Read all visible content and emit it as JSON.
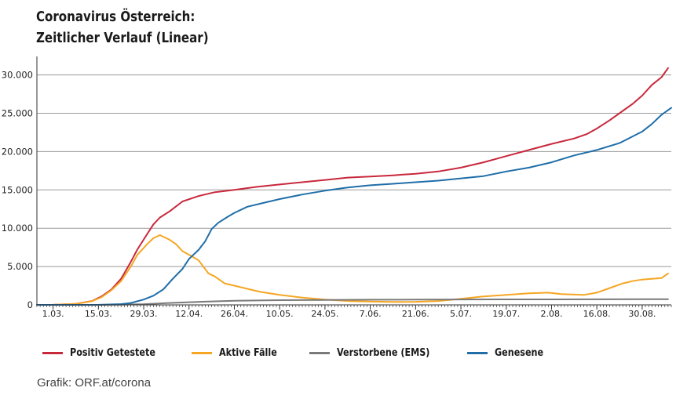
{
  "header": {
    "title_line1": "Coronavirus Österreich:",
    "title_line2": "Zeitlicher Verlauf (Linear)"
  },
  "source": "Grafik: ORF.at/corona",
  "chart_data": {
    "type": "line",
    "title": "Coronavirus Österreich: Zeitlicher Verlauf (Linear)",
    "xlabel": "",
    "ylabel": "",
    "grid": true,
    "legend_position": "bottom",
    "ylim": [
      0,
      32000
    ],
    "y_ticks": [
      0,
      5000,
      10000,
      15000,
      20000,
      25000,
      30000
    ],
    "y_tick_labels": [
      "0",
      "5.000",
      "10.000",
      "15.000",
      "20.000",
      "25.000",
      "30.000"
    ],
    "x_range": [
      "2020-02-25",
      "2020-09-08"
    ],
    "x_ticks": [
      "2020-03-01",
      "2020-03-15",
      "2020-03-29",
      "2020-04-12",
      "2020-04-26",
      "2020-05-10",
      "2020-05-24",
      "2020-06-07",
      "2020-06-21",
      "2020-07-05",
      "2020-07-19",
      "2020-08-02",
      "2020-08-16",
      "2020-08-30"
    ],
    "x_tick_labels": [
      "1.03.",
      "15.03.",
      "29.03.",
      "12.04.",
      "26.04.",
      "10.05.",
      "24.05.",
      "7.06.",
      "21.06.",
      "5.07.",
      "19.07.",
      "2.08.",
      "16.08.",
      "30.08."
    ],
    "series": [
      {
        "name": "Positiv Getestete",
        "color": "#c8283c",
        "points": [
          [
            "2020-02-25",
            0
          ],
          [
            "2020-03-01",
            15
          ],
          [
            "2020-03-08",
            130
          ],
          [
            "2020-03-13",
            500
          ],
          [
            "2020-03-16",
            1100
          ],
          [
            "2020-03-19",
            2000
          ],
          [
            "2020-03-22",
            3400
          ],
          [
            "2020-03-25",
            5600
          ],
          [
            "2020-03-27",
            7200
          ],
          [
            "2020-03-30",
            9200
          ],
          [
            "2020-04-01",
            10500
          ],
          [
            "2020-04-03",
            11400
          ],
          [
            "2020-04-06",
            12200
          ],
          [
            "2020-04-10",
            13500
          ],
          [
            "2020-04-15",
            14200
          ],
          [
            "2020-04-20",
            14700
          ],
          [
            "2020-04-26",
            15000
          ],
          [
            "2020-05-03",
            15400
          ],
          [
            "2020-05-10",
            15700
          ],
          [
            "2020-05-17",
            16000
          ],
          [
            "2020-05-24",
            16300
          ],
          [
            "2020-05-31",
            16600
          ],
          [
            "2020-06-07",
            16750
          ],
          [
            "2020-06-14",
            16900
          ],
          [
            "2020-06-21",
            17100
          ],
          [
            "2020-06-28",
            17400
          ],
          [
            "2020-07-05",
            17900
          ],
          [
            "2020-07-12",
            18600
          ],
          [
            "2020-07-19",
            19400
          ],
          [
            "2020-07-26",
            20200
          ],
          [
            "2020-08-02",
            21000
          ],
          [
            "2020-08-09",
            21700
          ],
          [
            "2020-08-13",
            22300
          ],
          [
            "2020-08-16",
            23000
          ],
          [
            "2020-08-20",
            24100
          ],
          [
            "2020-08-23",
            25000
          ],
          [
            "2020-08-27",
            26200
          ],
          [
            "2020-08-30",
            27300
          ],
          [
            "2020-09-02",
            28700
          ],
          [
            "2020-09-05",
            29700
          ],
          [
            "2020-09-07",
            30900
          ]
        ]
      },
      {
        "name": "Aktive Fälle",
        "color": "#f5a623",
        "points": [
          [
            "2020-02-25",
            0
          ],
          [
            "2020-03-01",
            15
          ],
          [
            "2020-03-08",
            120
          ],
          [
            "2020-03-13",
            480
          ],
          [
            "2020-03-16",
            1000
          ],
          [
            "2020-03-19",
            1900
          ],
          [
            "2020-03-22",
            3100
          ],
          [
            "2020-03-25",
            5000
          ],
          [
            "2020-03-27",
            6500
          ],
          [
            "2020-03-30",
            7900
          ],
          [
            "2020-04-01",
            8700
          ],
          [
            "2020-04-03",
            9100
          ],
          [
            "2020-04-06",
            8500
          ],
          [
            "2020-04-08",
            7900
          ],
          [
            "2020-04-10",
            7000
          ],
          [
            "2020-04-13",
            6300
          ],
          [
            "2020-04-15",
            5800
          ],
          [
            "2020-04-18",
            4100
          ],
          [
            "2020-04-20",
            3700
          ],
          [
            "2020-04-23",
            2800
          ],
          [
            "2020-04-26",
            2500
          ],
          [
            "2020-04-30",
            2100
          ],
          [
            "2020-05-04",
            1700
          ],
          [
            "2020-05-10",
            1300
          ],
          [
            "2020-05-17",
            950
          ],
          [
            "2020-05-24",
            700
          ],
          [
            "2020-06-01",
            480
          ],
          [
            "2020-06-07",
            430
          ],
          [
            "2020-06-14",
            380
          ],
          [
            "2020-06-21",
            400
          ],
          [
            "2020-06-28",
            500
          ],
          [
            "2020-07-05",
            800
          ],
          [
            "2020-07-12",
            1100
          ],
          [
            "2020-07-19",
            1300
          ],
          [
            "2020-07-26",
            1500
          ],
          [
            "2020-08-01",
            1600
          ],
          [
            "2020-08-05",
            1400
          ],
          [
            "2020-08-12",
            1300
          ],
          [
            "2020-08-16",
            1600
          ],
          [
            "2020-08-20",
            2200
          ],
          [
            "2020-08-24",
            2800
          ],
          [
            "2020-08-27",
            3100
          ],
          [
            "2020-08-30",
            3300
          ],
          [
            "2020-09-02",
            3400
          ],
          [
            "2020-09-05",
            3500
          ],
          [
            "2020-09-07",
            4100
          ]
        ]
      },
      {
        "name": "Verstorbene (EMS)",
        "color": "#7a7a7a",
        "points": [
          [
            "2020-02-25",
            0
          ],
          [
            "2020-03-15",
            5
          ],
          [
            "2020-03-22",
            30
          ],
          [
            "2020-03-29",
            90
          ],
          [
            "2020-04-05",
            220
          ],
          [
            "2020-04-12",
            350
          ],
          [
            "2020-04-19",
            450
          ],
          [
            "2020-04-26",
            540
          ],
          [
            "2020-05-10",
            610
          ],
          [
            "2020-05-24",
            640
          ],
          [
            "2020-06-07",
            670
          ],
          [
            "2020-06-21",
            690
          ],
          [
            "2020-07-05",
            705
          ],
          [
            "2020-07-19",
            715
          ],
          [
            "2020-08-02",
            720
          ],
          [
            "2020-08-16",
            727
          ],
          [
            "2020-08-30",
            735
          ],
          [
            "2020-09-07",
            750
          ]
        ]
      },
      {
        "name": "Genesene",
        "color": "#1f6ea8",
        "points": [
          [
            "2020-02-25",
            0
          ],
          [
            "2020-03-15",
            10
          ],
          [
            "2020-03-22",
            100
          ],
          [
            "2020-03-25",
            250
          ],
          [
            "2020-03-29",
            700
          ],
          [
            "2020-04-01",
            1200
          ],
          [
            "2020-04-04",
            2000
          ],
          [
            "2020-04-07",
            3400
          ],
          [
            "2020-04-10",
            4700
          ],
          [
            "2020-04-12",
            6000
          ],
          [
            "2020-04-15",
            7200
          ],
          [
            "2020-04-17",
            8300
          ],
          [
            "2020-04-19",
            9900
          ],
          [
            "2020-04-21",
            10700
          ],
          [
            "2020-04-24",
            11500
          ],
          [
            "2020-04-26",
            12000
          ],
          [
            "2020-04-30",
            12800
          ],
          [
            "2020-05-05",
            13300
          ],
          [
            "2020-05-10",
            13800
          ],
          [
            "2020-05-17",
            14400
          ],
          [
            "2020-05-24",
            14900
          ],
          [
            "2020-05-31",
            15300
          ],
          [
            "2020-06-07",
            15600
          ],
          [
            "2020-06-14",
            15800
          ],
          [
            "2020-06-21",
            16000
          ],
          [
            "2020-06-28",
            16200
          ],
          [
            "2020-07-05",
            16500
          ],
          [
            "2020-07-12",
            16800
          ],
          [
            "2020-07-19",
            17400
          ],
          [
            "2020-07-26",
            17900
          ],
          [
            "2020-08-02",
            18600
          ],
          [
            "2020-08-09",
            19500
          ],
          [
            "2020-08-16",
            20200
          ],
          [
            "2020-08-23",
            21100
          ],
          [
            "2020-08-30",
            22600
          ],
          [
            "2020-09-02",
            23600
          ],
          [
            "2020-09-05",
            24800
          ],
          [
            "2020-09-08",
            25700
          ]
        ]
      }
    ]
  }
}
